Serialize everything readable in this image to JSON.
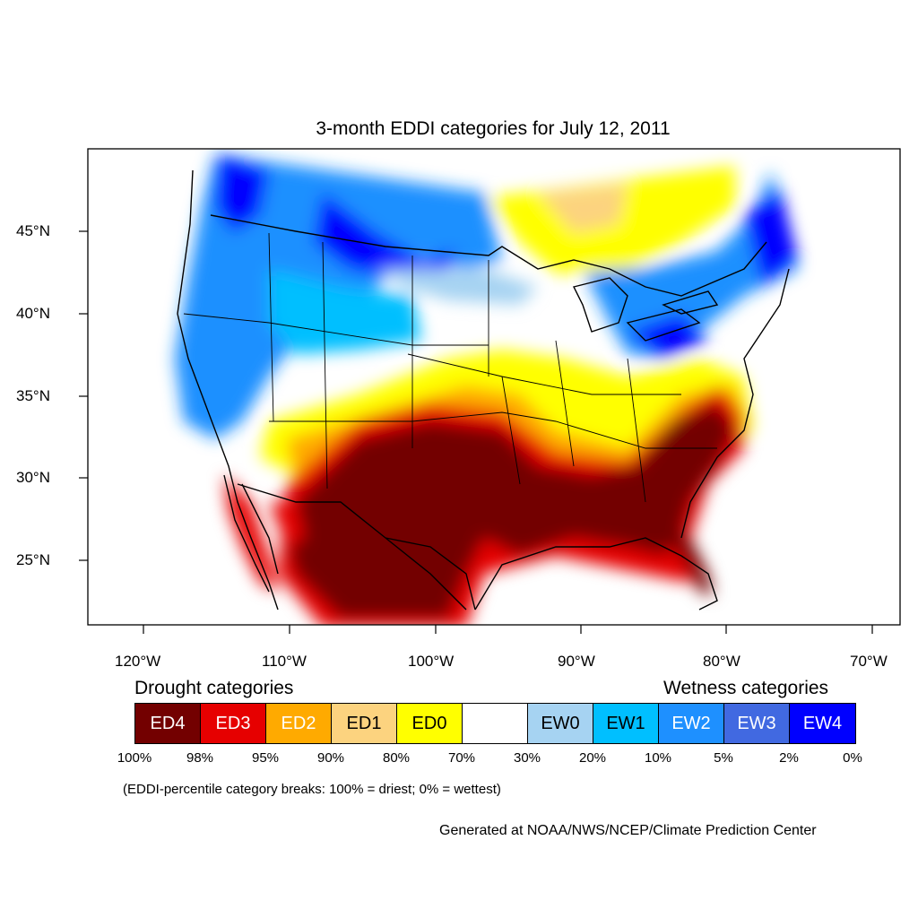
{
  "title": "3-month EDDI categories for July 12, 2011",
  "lat_labels": [
    "45°N",
    "40°N",
    "35°N",
    "30°N",
    "25°N"
  ],
  "lon_labels": [
    "120°W",
    "110°W",
    "100°W",
    "90°W",
    "80°W",
    "70°W"
  ],
  "legend": {
    "drought_title": "Drought categories",
    "wetness_title": "Wetness categories",
    "categories": [
      {
        "label": "ED4",
        "color": "#730000",
        "text_color": "#ffffff"
      },
      {
        "label": "ED3",
        "color": "#e60000",
        "text_color": "#ffffff"
      },
      {
        "label": "ED2",
        "color": "#ffaa00",
        "text_color": "#ffffff"
      },
      {
        "label": "ED1",
        "color": "#fcd37f",
        "text_color": "#000000"
      },
      {
        "label": "ED0",
        "color": "#ffff00",
        "text_color": "#000000"
      },
      {
        "label": "",
        "color": "#ffffff",
        "text_color": "#000000"
      },
      {
        "label": "EW0",
        "color": "#a6d3f2",
        "text_color": "#000000"
      },
      {
        "label": "EW1",
        "color": "#00bfff",
        "text_color": "#000000"
      },
      {
        "label": "EW2",
        "color": "#1e90ff",
        "text_color": "#ffffff"
      },
      {
        "label": "EW3",
        "color": "#4169e1",
        "text_color": "#ffffff"
      },
      {
        "label": "EW4",
        "color": "#0000ff",
        "text_color": "#ffffff"
      }
    ],
    "breaks": [
      "100%",
      "98%",
      "95%",
      "90%",
      "80%",
      "70%",
      "30%",
      "20%",
      "10%",
      "5%",
      "2%",
      "0%"
    ]
  },
  "note": "(EDDI-percentile category breaks: 100% = driest; 0% = wettest)",
  "credit": "Generated at NOAA/NWS/NCEP/Climate Prediction Center"
}
